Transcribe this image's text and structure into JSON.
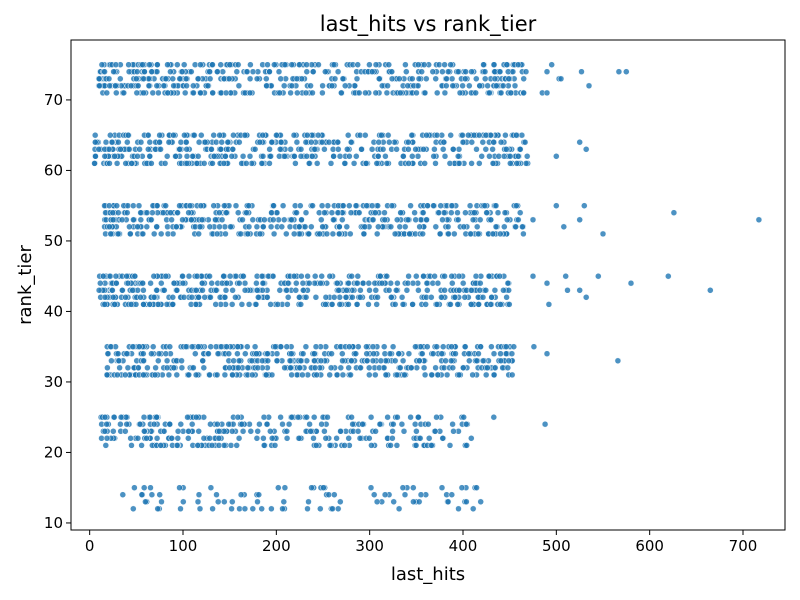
{
  "chart_data": {
    "type": "scatter",
    "title": "last_hits vs rank_tier",
    "xlabel": "last_hits",
    "ylabel": "rank_tier",
    "xlim": [
      -20,
      745
    ],
    "ylim": [
      9,
      78.5
    ],
    "xticks": [
      0,
      100,
      200,
      300,
      400,
      500,
      600,
      700
    ],
    "yticks": [
      10,
      20,
      30,
      40,
      50,
      60,
      70
    ],
    "grid": false,
    "point_color": "#1f77b4",
    "rank_tiers": [
      12,
      13,
      14,
      15,
      21,
      22,
      23,
      24,
      25,
      31,
      32,
      33,
      34,
      35,
      41,
      42,
      43,
      44,
      45,
      51,
      52,
      53,
      54,
      55,
      61,
      62,
      63,
      64,
      65,
      71,
      72,
      73,
      74,
      75
    ],
    "tier_ranges": {
      "1": [
        35,
        420
      ],
      "2": [
        12,
        410
      ],
      "3": [
        18,
        455
      ],
      "4": [
        10,
        450
      ],
      "5": [
        15,
        465
      ],
      "6": [
        5,
        470
      ],
      "7": [
        8,
        470
      ]
    },
    "outliers": [
      {
        "x": 419,
        "y": 13
      },
      {
        "x": 433,
        "y": 25
      },
      {
        "x": 488,
        "y": 24
      },
      {
        "x": 448,
        "y": 32
      },
      {
        "x": 476,
        "y": 35
      },
      {
        "x": 490,
        "y": 34
      },
      {
        "x": 566,
        "y": 33
      },
      {
        "x": 475,
        "y": 45
      },
      {
        "x": 510,
        "y": 45
      },
      {
        "x": 545,
        "y": 45
      },
      {
        "x": 620,
        "y": 45
      },
      {
        "x": 580,
        "y": 44
      },
      {
        "x": 490,
        "y": 44
      },
      {
        "x": 512,
        "y": 43
      },
      {
        "x": 525,
        "y": 43
      },
      {
        "x": 665,
        "y": 43
      },
      {
        "x": 532,
        "y": 42
      },
      {
        "x": 492,
        "y": 41
      },
      {
        "x": 500,
        "y": 55
      },
      {
        "x": 530,
        "y": 55
      },
      {
        "x": 626,
        "y": 54
      },
      {
        "x": 475,
        "y": 53
      },
      {
        "x": 525,
        "y": 53
      },
      {
        "x": 717,
        "y": 53
      },
      {
        "x": 508,
        "y": 52
      },
      {
        "x": 550,
        "y": 51
      },
      {
        "x": 525,
        "y": 64
      },
      {
        "x": 532,
        "y": 63
      },
      {
        "x": 500,
        "y": 62
      },
      {
        "x": 495,
        "y": 75
      },
      {
        "x": 490,
        "y": 74
      },
      {
        "x": 527,
        "y": 74
      },
      {
        "x": 567,
        "y": 74
      },
      {
        "x": 575,
        "y": 74
      },
      {
        "x": 503,
        "y": 73
      },
      {
        "x": 505,
        "y": 73
      },
      {
        "x": 535,
        "y": 72
      },
      {
        "x": 485,
        "y": 71
      },
      {
        "x": 490,
        "y": 71
      }
    ]
  }
}
